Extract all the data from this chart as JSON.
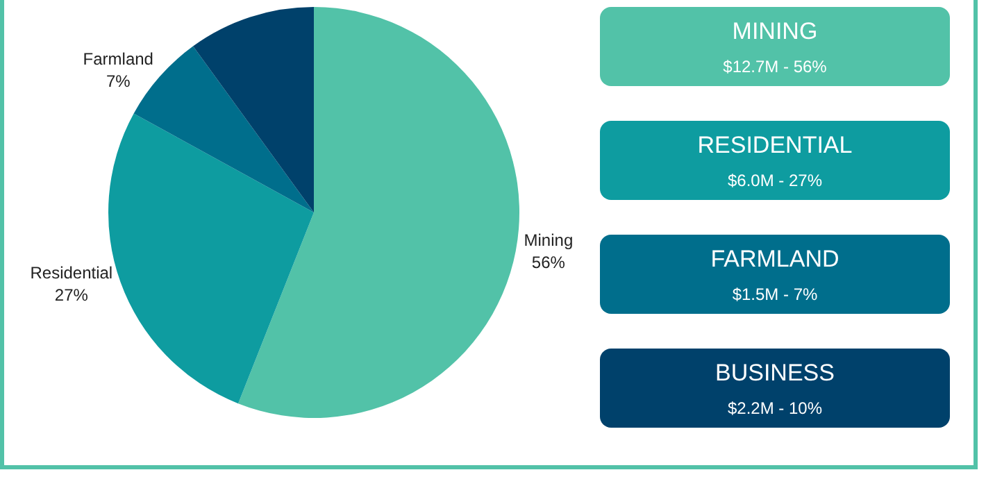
{
  "chart_data": {
    "type": "pie",
    "categories": [
      "Mining",
      "Residential",
      "Farmland",
      null
    ],
    "values": [
      56,
      27,
      7,
      10
    ],
    "colors": [
      "#52c2a8",
      "#0e9ca0",
      "#006e8c",
      "#00416b"
    ],
    "value_labels": [
      "56%",
      "27%",
      "7%",
      null
    ],
    "legend": false,
    "annotations": [
      "MINING",
      "$12.7M - 56%",
      "RESIDENTIAL",
      "$6.0M - 27%",
      "FARMLAND",
      "$1.5M - 7%",
      "BUSINESS",
      "$2.2M - 10%"
    ]
  }
}
